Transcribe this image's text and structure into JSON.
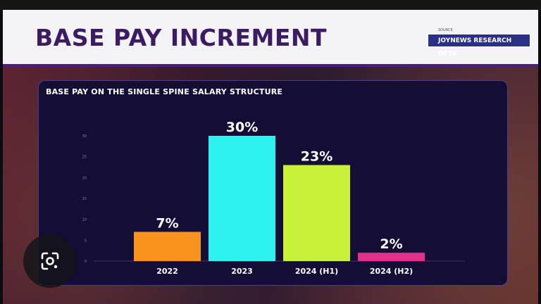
{
  "slide": {
    "title": "BASE PAY INCREMENT",
    "source_small": "SOURCE",
    "source_name": "JOYNEWS RESEARCH DESK"
  },
  "chart_data": {
    "type": "bar",
    "title": "BASE PAY ON THE SINGLE SPINE SALARY STRUCTURE",
    "categories": [
      "2022",
      "2023",
      "2024 (H1)",
      "2024 (H2)"
    ],
    "values": [
      7,
      30,
      23,
      2
    ],
    "data_labels": [
      "7%",
      "30%",
      "23%",
      "2%"
    ],
    "colors": [
      "#f7931e",
      "#2ef2f0",
      "#c8f23a",
      "#e0308a"
    ],
    "ylim": [
      0,
      30
    ],
    "yticks": [
      0,
      5,
      10,
      15,
      20,
      25,
      30
    ],
    "ytick_labels": [
      "0",
      "5",
      "10",
      "15",
      "20",
      "25",
      "30"
    ],
    "xlabel": "",
    "ylabel": "",
    "grid": false,
    "legend": "none"
  },
  "icons": {
    "lens": "google-lens-icon"
  }
}
